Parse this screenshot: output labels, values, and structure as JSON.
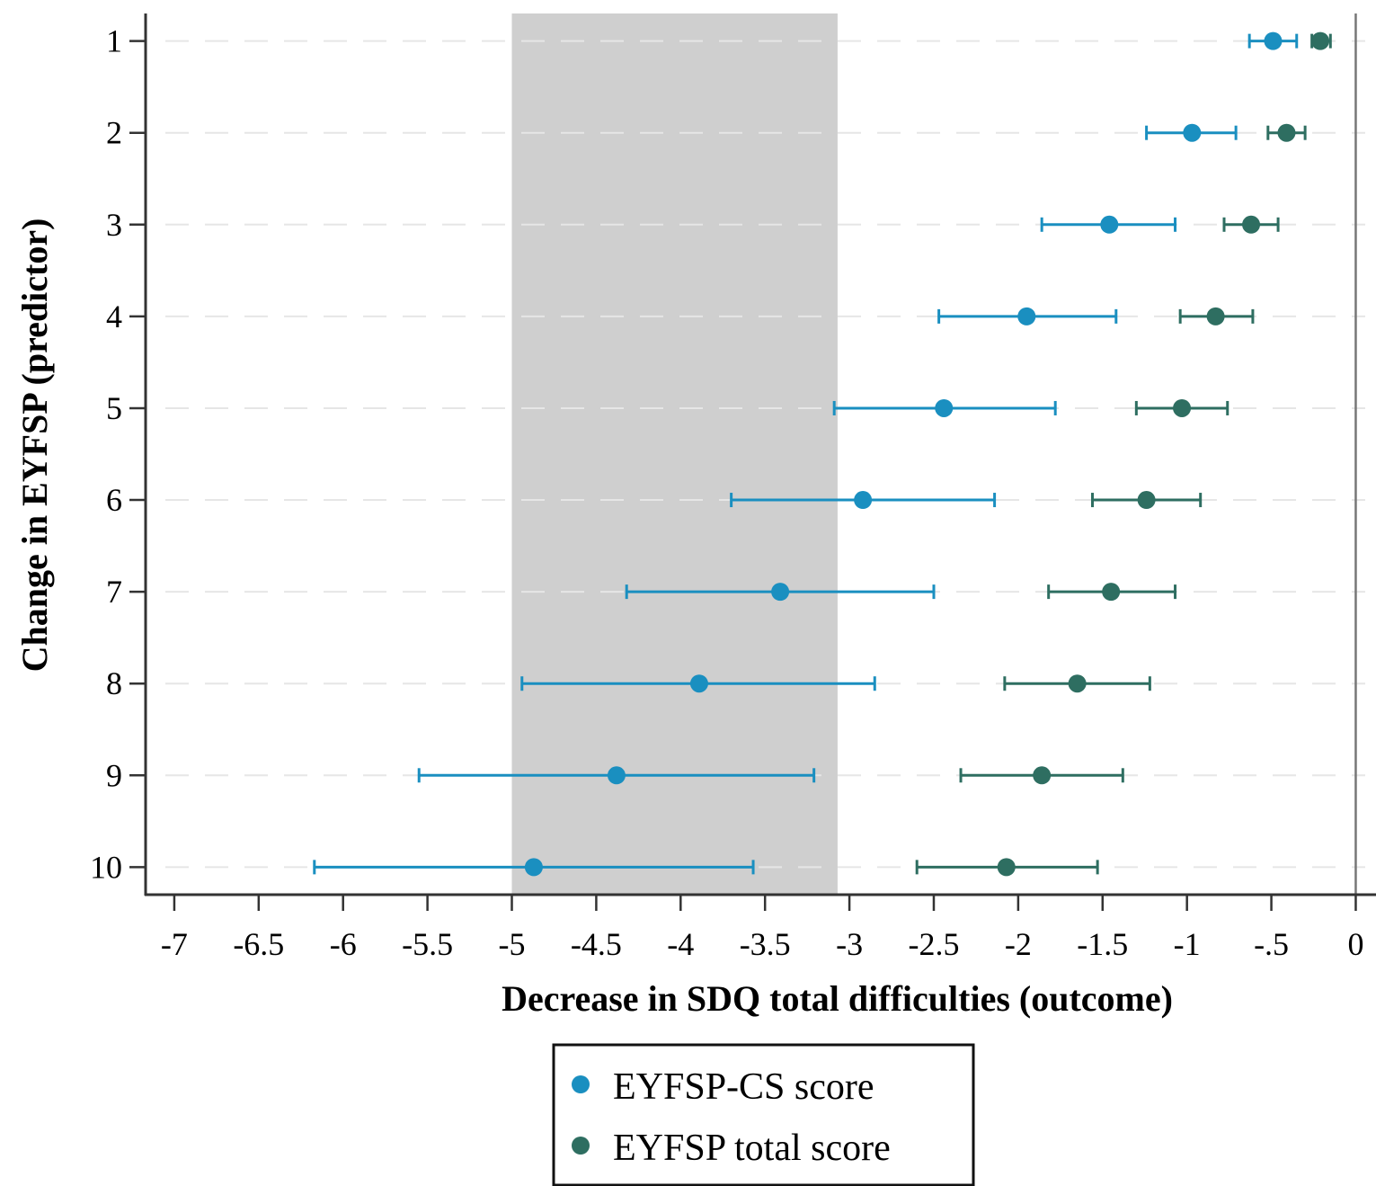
{
  "chart_data": {
    "type": "scatter",
    "xlabel": "Decrease in SDQ total difficulties (outcome)",
    "ylabel": "Change in EYFSP (predictor)",
    "xlim": [
      -7.17,
      0.12
    ],
    "ylim": [
      0.7,
      10.3
    ],
    "y_reversed": true,
    "x_ticks": [
      -7,
      -6.5,
      -6,
      -5.5,
      -5,
      -4.5,
      -4,
      -3.5,
      -3,
      -2.5,
      -2,
      -1.5,
      -1,
      -0.5,
      0
    ],
    "x_tick_labels": [
      "-7",
      "-6.5",
      "-6",
      "-5.5",
      "-5",
      "-4.5",
      "-4",
      "-3.5",
      "-3",
      "-2.5",
      "-2",
      "-1.5",
      "-1",
      "-.5",
      "0"
    ],
    "y_ticks": [
      1,
      2,
      3,
      4,
      5,
      6,
      7,
      8,
      9,
      10
    ],
    "y_tick_labels": [
      "1",
      "2",
      "3",
      "4",
      "5",
      "6",
      "7",
      "8",
      "9",
      "10"
    ],
    "shaded_region": {
      "x0": -5.0,
      "x1": -3.07,
      "color": "#cfcfcf"
    },
    "reference_line": {
      "x": 0,
      "color": "#777777"
    },
    "grid": {
      "horizontal": true,
      "style": "dashed",
      "color": "#e6e6e6"
    },
    "legend_position": "bottom-center",
    "series": [
      {
        "name": "EYFSP-CS score",
        "color": "#1a8fc0",
        "points": [
          {
            "y": 1,
            "x": -0.49,
            "lo": -0.63,
            "hi": -0.35
          },
          {
            "y": 2,
            "x": -0.97,
            "lo": -1.24,
            "hi": -0.71
          },
          {
            "y": 3,
            "x": -1.46,
            "lo": -1.86,
            "hi": -1.07
          },
          {
            "y": 4,
            "x": -1.95,
            "lo": -2.47,
            "hi": -1.42
          },
          {
            "y": 5,
            "x": -2.44,
            "lo": -3.09,
            "hi": -1.78
          },
          {
            "y": 6,
            "x": -2.92,
            "lo": -3.7,
            "hi": -2.14
          },
          {
            "y": 7,
            "x": -3.41,
            "lo": -4.32,
            "hi": -2.5
          },
          {
            "y": 8,
            "x": -3.89,
            "lo": -4.94,
            "hi": -2.85
          },
          {
            "y": 9,
            "x": -4.38,
            "lo": -5.55,
            "hi": -3.21
          },
          {
            "y": 10,
            "x": -4.87,
            "lo": -6.17,
            "hi": -3.57
          }
        ]
      },
      {
        "name": "EYFSP total score",
        "color": "#2e6e61",
        "points": [
          {
            "y": 1,
            "x": -0.21,
            "lo": -0.26,
            "hi": -0.15
          },
          {
            "y": 2,
            "x": -0.41,
            "lo": -0.52,
            "hi": -0.3
          },
          {
            "y": 3,
            "x": -0.62,
            "lo": -0.78,
            "hi": -0.46
          },
          {
            "y": 4,
            "x": -0.83,
            "lo": -1.04,
            "hi": -0.61
          },
          {
            "y": 5,
            "x": -1.03,
            "lo": -1.3,
            "hi": -0.76
          },
          {
            "y": 6,
            "x": -1.24,
            "lo": -1.56,
            "hi": -0.92
          },
          {
            "y": 7,
            "x": -1.45,
            "lo": -1.82,
            "hi": -1.07
          },
          {
            "y": 8,
            "x": -1.65,
            "lo": -2.08,
            "hi": -1.22
          },
          {
            "y": 9,
            "x": -1.86,
            "lo": -2.34,
            "hi": -1.38
          },
          {
            "y": 10,
            "x": -2.07,
            "lo": -2.6,
            "hi": -1.53
          }
        ]
      }
    ]
  }
}
